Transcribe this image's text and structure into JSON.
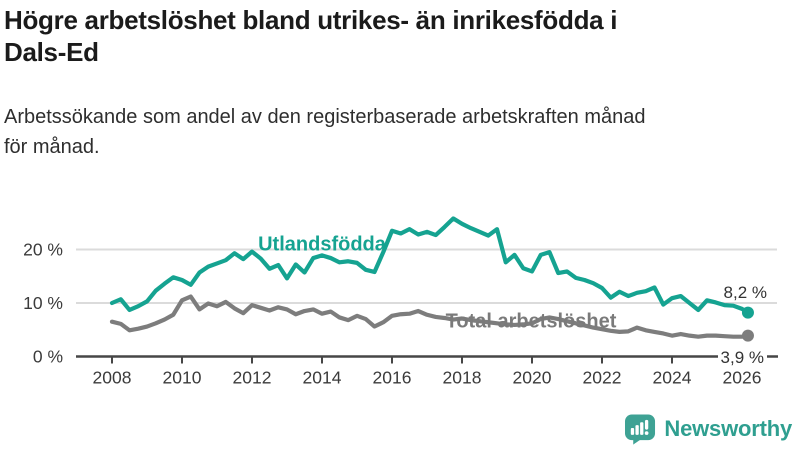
{
  "header": {
    "title": "Högre arbetslöshet bland utrikes- än inrikesfödda i\nDals-Ed",
    "subtitle": "Arbetssökande som andel av den registerbaserade arbetskraften månad\nför månad."
  },
  "footer": {
    "brand": "Newsworthy"
  },
  "colors": {
    "teal": "#15a391",
    "gray": "#7d7d7d",
    "axis": "#464646",
    "grid": "#dbdbdb",
    "tick_text": "#3b3b3b",
    "logo_teal": "#3ea294",
    "brand_text": "#2f9f90"
  },
  "chart_data": {
    "type": "line",
    "title": "Högre arbetslöshet bland utrikes- än inrikesfödda i Dals-Ed",
    "xlabel": "",
    "ylabel": "",
    "unit": "%",
    "ylim": [
      0,
      30
    ],
    "grid": true,
    "yticks": [
      {
        "value": 0,
        "label": "0 %"
      },
      {
        "value": 10,
        "label": "10 %"
      },
      {
        "value": 20,
        "label": "20 %"
      }
    ],
    "xticks": [
      {
        "value": 2008,
        "label": "2008"
      },
      {
        "value": 2010,
        "label": "2010"
      },
      {
        "value": 2012,
        "label": "2012"
      },
      {
        "value": 2014,
        "label": "2014"
      },
      {
        "value": 2016,
        "label": "2016"
      },
      {
        "value": 2018,
        "label": "2018"
      },
      {
        "value": 2020,
        "label": "2020"
      },
      {
        "value": 2022,
        "label": "2022"
      },
      {
        "value": 2024,
        "label": "2024"
      },
      {
        "value": 2026,
        "label": "2026"
      }
    ],
    "x": [
      2008.0,
      2008.25,
      2008.5,
      2008.75,
      2009.0,
      2009.25,
      2009.5,
      2009.75,
      2010.0,
      2010.25,
      2010.5,
      2010.75,
      2011.0,
      2011.25,
      2011.5,
      2011.75,
      2012.0,
      2012.25,
      2012.5,
      2012.75,
      2013.0,
      2013.25,
      2013.5,
      2013.75,
      2014.0,
      2014.25,
      2014.5,
      2014.75,
      2015.0,
      2015.25,
      2015.5,
      2015.75,
      2016.0,
      2016.25,
      2016.5,
      2016.75,
      2017.0,
      2017.25,
      2017.5,
      2017.75,
      2018.0,
      2018.25,
      2018.5,
      2018.75,
      2019.0,
      2019.25,
      2019.5,
      2019.75,
      2020.0,
      2020.25,
      2020.5,
      2020.75,
      2021.0,
      2021.25,
      2021.5,
      2021.75,
      2022.0,
      2022.25,
      2022.5,
      2022.75,
      2023.0,
      2023.25,
      2023.5,
      2023.75,
      2024.0,
      2024.25,
      2024.5,
      2024.75,
      2025.0,
      2025.25,
      2025.5,
      2025.75,
      2026.0,
      2026.17
    ],
    "series": [
      {
        "name": "Utlandsfödda",
        "color": "#15a391",
        "end_value": 8.2,
        "end_label": "8,2 %",
        "values": [
          10.0,
          10.7,
          8.7,
          9.4,
          10.3,
          12.3,
          13.6,
          14.8,
          14.3,
          13.4,
          15.7,
          16.8,
          17.4,
          18.0,
          19.3,
          18.2,
          19.6,
          18.3,
          16.4,
          17.1,
          14.6,
          17.2,
          15.7,
          18.4,
          18.9,
          18.4,
          17.6,
          17.8,
          17.5,
          16.2,
          15.8,
          19.5,
          23.5,
          23.0,
          23.8,
          22.8,
          23.3,
          22.7,
          24.2,
          25.8,
          24.8,
          24.0,
          23.3,
          22.6,
          23.8,
          17.6,
          19.0,
          16.5,
          15.9,
          19.0,
          19.5,
          15.6,
          15.9,
          14.7,
          14.3,
          13.7,
          12.8,
          11.0,
          12.1,
          11.3,
          11.9,
          12.2,
          12.9,
          9.7,
          10.9,
          11.3,
          10.0,
          8.7,
          10.5,
          10.1,
          9.6,
          9.5,
          8.9,
          8.2
        ]
      },
      {
        "name": "Total arbetslöshet",
        "color": "#7d7d7d",
        "end_value": 3.9,
        "end_label": "3,9 %",
        "values": [
          6.5,
          6.1,
          4.9,
          5.2,
          5.6,
          6.2,
          6.9,
          7.8,
          10.5,
          11.2,
          8.8,
          9.9,
          9.4,
          10.2,
          9.0,
          8.1,
          9.6,
          9.1,
          8.6,
          9.2,
          8.8,
          7.9,
          8.5,
          8.8,
          8.0,
          8.4,
          7.3,
          6.8,
          7.6,
          7.0,
          5.6,
          6.4,
          7.6,
          7.9,
          8.0,
          8.5,
          7.8,
          7.4,
          7.2,
          6.9,
          7.1,
          6.8,
          6.6,
          6.4,
          6.2,
          6.0,
          5.9,
          6.0,
          6.2,
          7.0,
          7.3,
          7.0,
          6.6,
          6.2,
          5.8,
          5.4,
          5.1,
          4.8,
          4.6,
          4.7,
          5.4,
          4.9,
          4.6,
          4.3,
          3.9,
          4.2,
          3.9,
          3.7,
          3.9,
          3.9,
          3.8,
          3.7,
          3.7,
          3.9
        ]
      }
    ],
    "legend": "inline-labels"
  }
}
